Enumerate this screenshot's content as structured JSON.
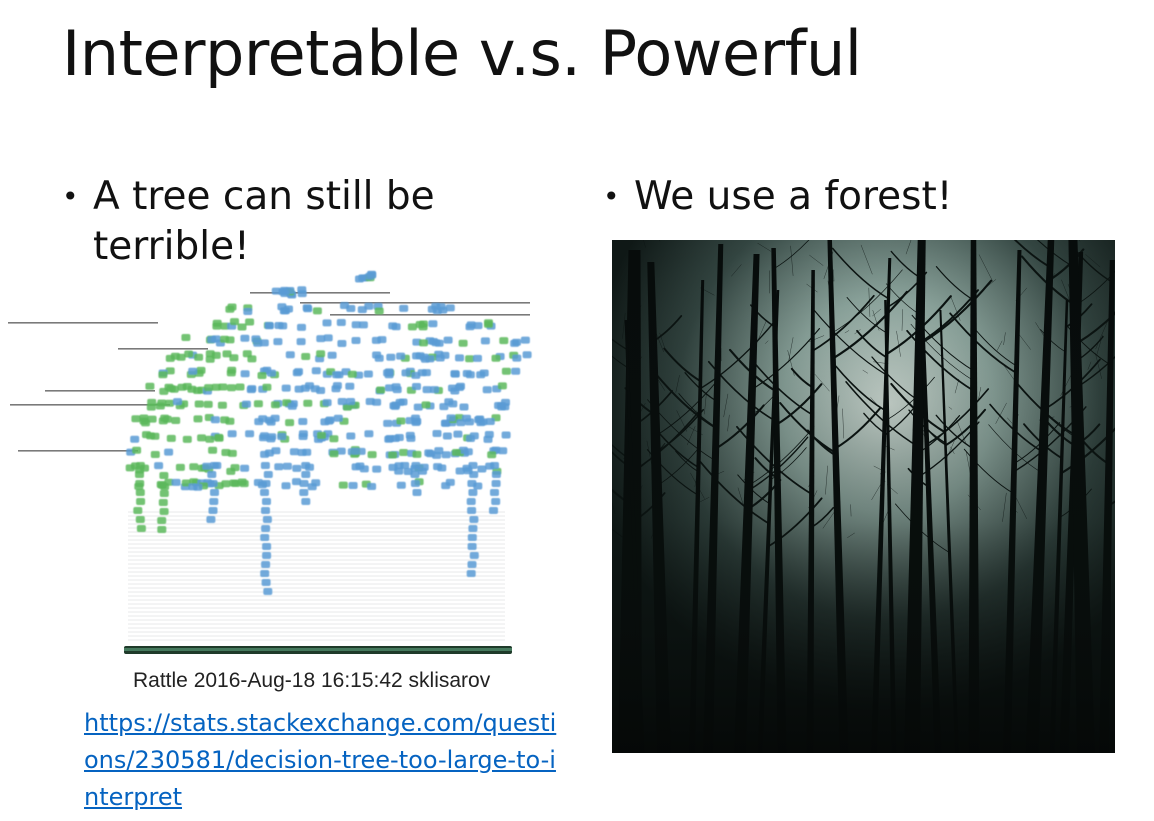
{
  "slide": {
    "title": "Interpretable v.s. Powerful",
    "left": {
      "bullet": "A tree can still be terrible!",
      "image_caption": "Rattle 2016-Aug-18 16:15:42 sklisarov",
      "link_text": "https://stats.stackexchange.com/questions/230581/decision-tree-too-large-to-interpret"
    },
    "right": {
      "bullet": "We use a forest!"
    }
  },
  "colors": {
    "link": "#0563c1",
    "tree_node_green": "#5cb85c",
    "tree_node_blue": "#5b9bd5",
    "forest_sky": "#b9c9c2",
    "forest_dark": "#111a18"
  },
  "icons": {
    "bullet": "bullet-dot"
  }
}
